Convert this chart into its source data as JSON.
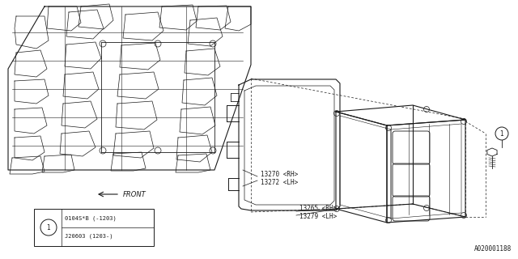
{
  "bg_color": "#ffffff",
  "line_color": "#1a1a1a",
  "fig_width": 6.4,
  "fig_height": 3.2,
  "dpi": 100,
  "labels": {
    "part_13270": "13270 <RH>",
    "part_13272": "13272 <LH>",
    "part_13265": "13265 <RH>",
    "part_13279": "13279 <LH>",
    "front_label": "FRONT",
    "legend_row1": "0104S*B (-1203)",
    "legend_row2": "J20603 (1203-)",
    "diagram_id": "A020001188"
  }
}
